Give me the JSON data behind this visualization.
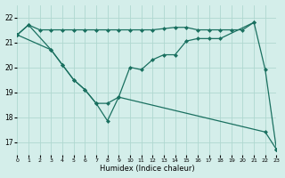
{
  "xlabel": "Humidex (Indice chaleur)",
  "bg_color": "#d4eeea",
  "grid_color": "#b0d8d0",
  "line_color": "#1a7060",
  "xlim": [
    0,
    23
  ],
  "ylim": [
    16.5,
    22.5
  ],
  "yticks": [
    17,
    18,
    19,
    20,
    21,
    22
  ],
  "xticks": [
    0,
    1,
    2,
    3,
    4,
    5,
    6,
    7,
    8,
    9,
    10,
    11,
    12,
    13,
    14,
    15,
    16,
    17,
    18,
    19,
    20,
    21,
    22,
    23
  ],
  "line_top_x": [
    0,
    1,
    2,
    3,
    4,
    5,
    6,
    7,
    8,
    9,
    10,
    11,
    12,
    13,
    14,
    15,
    16,
    17,
    18,
    19,
    20,
    21
  ],
  "line_top_y": [
    21.3,
    21.7,
    21.5,
    21.5,
    21.5,
    21.5,
    21.5,
    21.5,
    21.5,
    21.5,
    21.5,
    21.5,
    21.5,
    21.55,
    21.6,
    21.6,
    21.5,
    21.5,
    21.5,
    21.5,
    21.5,
    21.8
  ],
  "line_mid_x": [
    0,
    1,
    3,
    4,
    5,
    6,
    7,
    8,
    9,
    10,
    11,
    12,
    13,
    14,
    15,
    16,
    17,
    18,
    21,
    22,
    23
  ],
  "line_mid_y": [
    21.3,
    21.7,
    20.7,
    20.1,
    19.5,
    19.1,
    18.55,
    18.55,
    18.8,
    20.0,
    19.9,
    20.3,
    20.5,
    20.5,
    21.05,
    21.15,
    21.15,
    21.15,
    21.8,
    19.9,
    16.7
  ],
  "line_bot_x": [
    0,
    3,
    4,
    5,
    6,
    7,
    8,
    9,
    22,
    23
  ],
  "line_bot_y": [
    21.3,
    20.7,
    20.1,
    19.5,
    19.1,
    18.55,
    17.85,
    18.8,
    17.4,
    16.7
  ]
}
